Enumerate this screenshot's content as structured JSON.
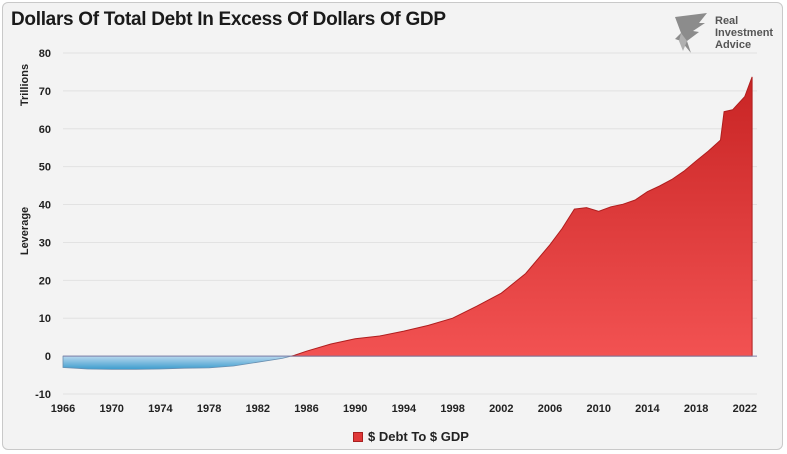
{
  "page": {
    "title": "Dollars Of Total Debt In Excess Of Dollars Of GDP",
    "logo_lines": [
      "Real",
      "Investment",
      "Advice"
    ]
  },
  "colors": {
    "positive_fill": "#e23a3a",
    "positive_dark": "#b01e1e",
    "negative_fill": "#4aa6d4",
    "background": "#f3f3f3"
  },
  "chart_data": {
    "type": "area",
    "title": "Dollars Of Total Debt In Excess Of Dollars Of GDP",
    "ylabel_top": "Trillions",
    "ylabel_mid": "Leverage",
    "xlabel": "",
    "ylim": [
      -10,
      80
    ],
    "yticks": [
      -10,
      0,
      10,
      20,
      30,
      40,
      50,
      60,
      70,
      80
    ],
    "xlim": [
      1966,
      2023
    ],
    "xticks": [
      1966,
      1970,
      1974,
      1978,
      1982,
      1986,
      1990,
      1994,
      1998,
      2002,
      2006,
      2010,
      2014,
      2018,
      2022
    ],
    "legend": "$ Debt To $ GDP",
    "series": [
      {
        "name": "$ Debt To $ GDP",
        "x": [
          1966,
          1967,
          1968,
          1970,
          1972,
          1974,
          1976,
          1978,
          1980,
          1982,
          1984,
          1985,
          1986,
          1988,
          1990,
          1992,
          1994,
          1996,
          1998,
          2000,
          2002,
          2004,
          2006,
          2007,
          2008,
          2009,
          2010,
          2011,
          2012,
          2013,
          2014,
          2015,
          2016,
          2017,
          2018,
          2019,
          2020,
          2020.3,
          2021,
          2022,
          2022.6
        ],
        "values": [
          -3.0,
          -3.2,
          -3.4,
          -3.5,
          -3.5,
          -3.4,
          -3.2,
          -3.1,
          -2.6,
          -1.6,
          -0.6,
          0.2,
          1.3,
          3.2,
          4.6,
          5.3,
          6.6,
          8.1,
          10.0,
          13.2,
          16.6,
          21.8,
          29.4,
          33.7,
          38.8,
          39.2,
          38.2,
          39.4,
          40.1,
          41.2,
          43.4,
          44.9,
          46.6,
          48.8,
          51.5,
          54.1,
          57.0,
          64.5,
          65.0,
          68.5,
          73.7
        ]
      }
    ]
  }
}
